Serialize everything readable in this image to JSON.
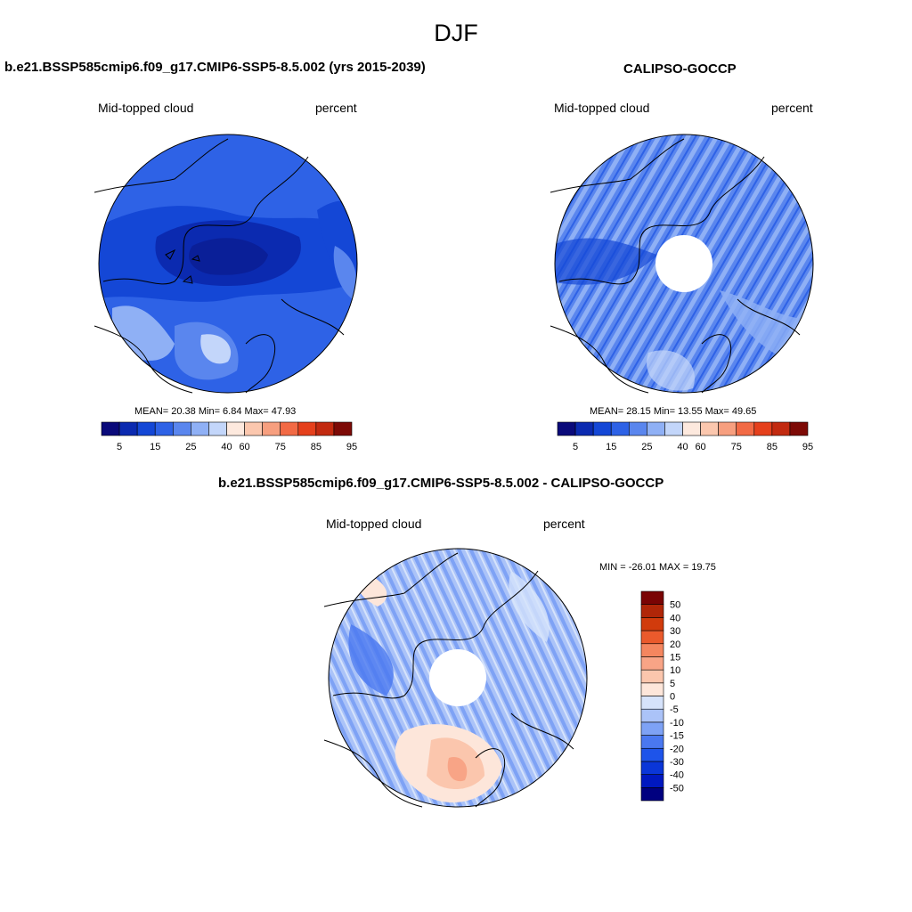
{
  "season": "DJF",
  "panels": {
    "model": {
      "title": "b.e21.BSSP585cmip6.f09_g17.CMIP6-SSP5-8.5.002 (yrs 2015-2039)",
      "left_label": "Mid-topped cloud",
      "right_label": "percent",
      "stats": "MEAN=  20.38  Min=   6.84  Max=  47.93"
    },
    "obs": {
      "title": "CALIPSO-GOCCP",
      "left_label": "Mid-topped cloud",
      "right_label": "percent",
      "stats": "MEAN=  28.15  Min=  13.55  Max=  49.65"
    },
    "diff": {
      "title": "b.e21.BSSP585cmip6.f09_g17.CMIP6-SSP5-8.5.002 - CALIPSO-GOCCP",
      "left_label": "Mid-topped cloud",
      "right_label": "percent",
      "stats": "MIN = -26.01 MAX =  19.75"
    }
  },
  "colorbar_abs": {
    "colors": [
      "#0a0a7a",
      "#0b2ab0",
      "#1447d6",
      "#2e62e6",
      "#5a86ee",
      "#8fb0f5",
      "#c3d6fa",
      "#fde9de",
      "#fbc7ae",
      "#f79f7f",
      "#f26a45",
      "#e5401c",
      "#c22a10",
      "#7d0a06"
    ],
    "tick_labels": [
      "5",
      "15",
      "25",
      "40",
      "60",
      "75",
      "85",
      "95"
    ]
  },
  "colorbar_diff": {
    "colors": [
      "#000080",
      "#0018c0",
      "#0a36d8",
      "#1e54ea",
      "#4a78f0",
      "#7ea2f5",
      "#abc3f8",
      "#d6e3fb",
      "#fde6da",
      "#fbc6ad",
      "#f8a486",
      "#f4865f",
      "#ea5a2c",
      "#d13b0c",
      "#b02608",
      "#7a0404"
    ],
    "tick_labels": [
      "-50",
      "-40",
      "-30",
      "-20",
      "-15",
      "-10",
      "-5",
      "0",
      "5",
      "10",
      "15",
      "20",
      "30",
      "40",
      "50"
    ]
  }
}
